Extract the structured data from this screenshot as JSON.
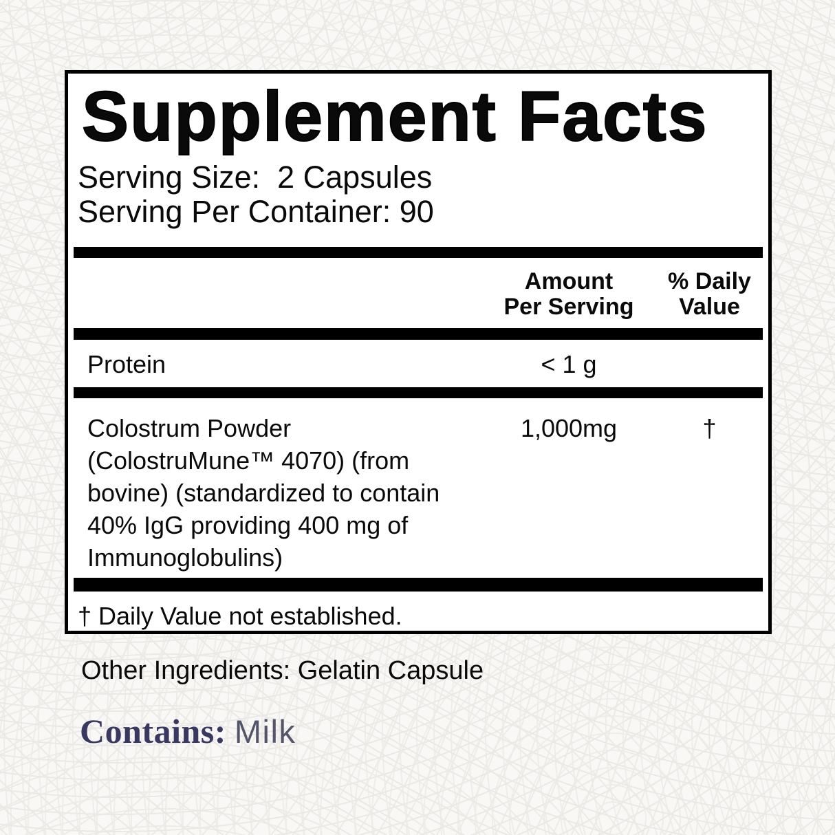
{
  "panel": {
    "title": "Supplement Facts",
    "serving_size": "Serving Size:  2 Capsules",
    "servings_per_container": "Serving Per Container: 90",
    "header": {
      "amount_line1": "Amount",
      "amount_line2": "Per Serving",
      "dv_line1": "% Daily",
      "dv_line2": "Value"
    },
    "rows": [
      {
        "name": "Protein",
        "amount": "< 1 g",
        "dv": ""
      },
      {
        "name": "Colostrum Powder\n(ColostruMune™ 4070) (from\nbovine) (standardized to contain\n40% IgG providing 400 mg of\nImmunoglobulins)",
        "amount": "1,000mg",
        "dv": "†"
      }
    ],
    "footnote": "† Daily Value not established."
  },
  "below": {
    "other_ingredients": "Other Ingredients: Gelatin Capsule",
    "contains_label": "Contains:",
    "contains_value": "Milk"
  },
  "colors": {
    "text": "#0a0a0a",
    "panel_background": "#ffffff",
    "page_background": "#f9f8f6",
    "pattern_line": "#ebe9e5",
    "contains_label": "#383860",
    "contains_value": "#54556a"
  }
}
